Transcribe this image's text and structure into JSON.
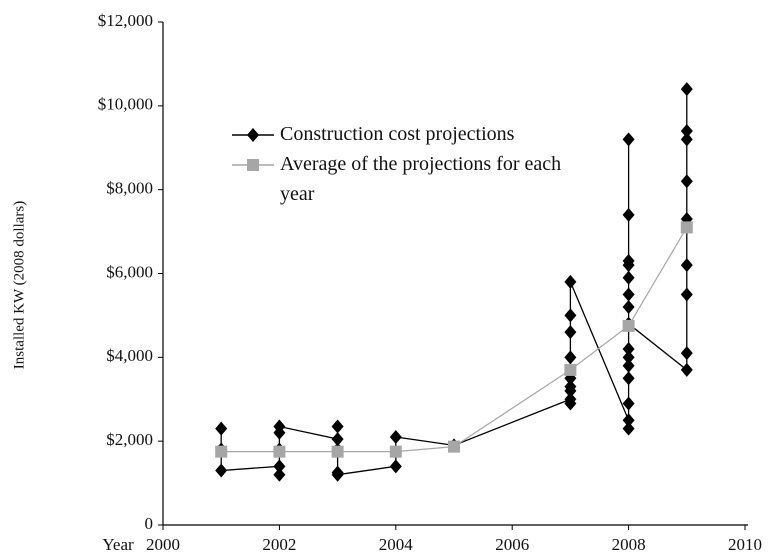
{
  "chart_data": {
    "type": "line",
    "x_label": "Year",
    "y_label": "Installed KW (2008 dollars)",
    "xlim": [
      2000,
      2010
    ],
    "xticks": [
      2000,
      2002,
      2004,
      2006,
      2008,
      2010
    ],
    "ylim": [
      0,
      12000
    ],
    "yticks": [
      0,
      {
        "value": 2000,
        "label": "$2,000"
      },
      {
        "value": 4000,
        "label": "$4,000"
      },
      {
        "value": 6000,
        "label": "$6,000"
      },
      {
        "value": 8000,
        "label": "$8,000"
      },
      {
        "value": 10000,
        "label": "$10,000"
      },
      {
        "value": 12000,
        "label": "$12,000"
      }
    ],
    "legend": "upper left",
    "series": [
      {
        "name": "Construction cost projections",
        "color": "#000000",
        "marker": "diamond",
        "x": [
          2001,
          2001,
          2001,
          2002,
          2002,
          2002,
          2002,
          2002,
          2003,
          2003,
          2003,
          2003,
          2003,
          2004,
          2004,
          2005,
          2007,
          2007,
          2007,
          2007,
          2007,
          2007,
          2007,
          2007,
          2007,
          2008,
          2008,
          2008,
          2008,
          2008,
          2008,
          2008,
          2008,
          2008,
          2008,
          2008,
          2008,
          2008,
          2008,
          2008,
          2009,
          2009,
          2009,
          2009,
          2009,
          2009,
          2009,
          2009,
          2009
        ],
        "values": [
          2300,
          1800,
          1300,
          1400,
          1200,
          1800,
          2200,
          2350,
          2050,
          2350,
          1800,
          1250,
          1200,
          1400,
          2100,
          1900,
          3000,
          2900,
          3200,
          3300,
          3500,
          4000,
          4600,
          5000,
          5800,
          2500,
          2300,
          2900,
          3500,
          3800,
          4000,
          4200,
          5200,
          5500,
          5900,
          6200,
          6300,
          7400,
          9200,
          4800,
          3700,
          4100,
          5500,
          6200,
          7300,
          8200,
          9200,
          9400,
          10400
        ]
      },
      {
        "name": "Average of the projections for each year",
        "color": "#a6a6a6",
        "marker": "square",
        "x": [
          2001,
          2002,
          2003,
          2004,
          2005,
          2007,
          2008,
          2009
        ],
        "values": [
          1750,
          1750,
          1750,
          1750,
          1870,
          3700,
          4750,
          7100
        ]
      }
    ]
  }
}
